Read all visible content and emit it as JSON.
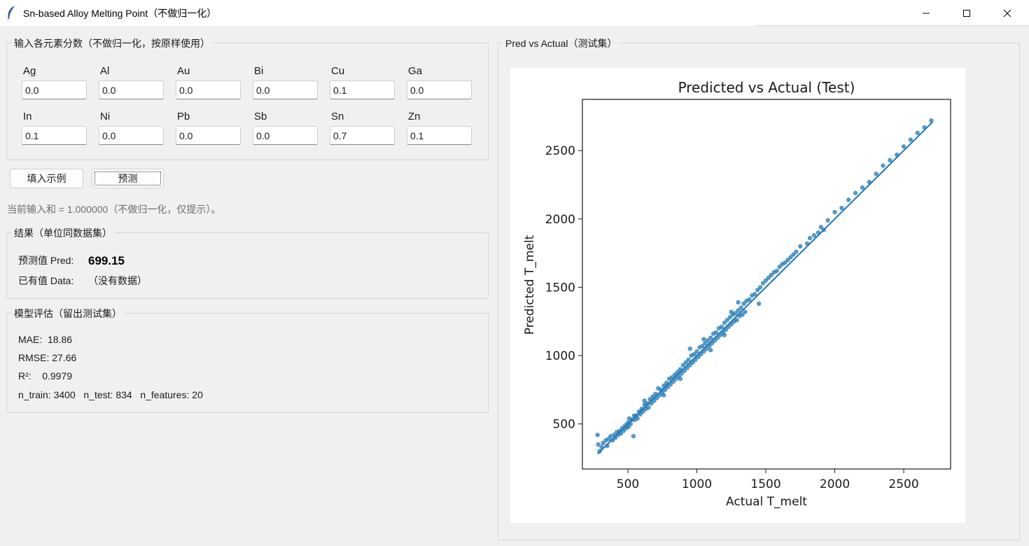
{
  "window": {
    "title": "Sn-based Alloy Melting Point（不做归一化）"
  },
  "inputs": {
    "group_title": "输入各元素分数（不做归一化，按原样使用）",
    "fields": [
      {
        "label": "Ag",
        "value": "0.0"
      },
      {
        "label": "Al",
        "value": "0.0"
      },
      {
        "label": "Au",
        "value": "0.0"
      },
      {
        "label": "Bi",
        "value": "0.0"
      },
      {
        "label": "Cu",
        "value": "0.1"
      },
      {
        "label": "Ga",
        "value": "0.0"
      },
      {
        "label": "In",
        "value": "0.1"
      },
      {
        "label": "Ni",
        "value": "0.0"
      },
      {
        "label": "Pb",
        "value": "0.0"
      },
      {
        "label": "Sb",
        "value": "0.0"
      },
      {
        "label": "Sn",
        "value": "0.7"
      },
      {
        "label": "Zn",
        "value": "0.1"
      }
    ]
  },
  "buttons": {
    "fill_example": "填入示例",
    "predict": "预测"
  },
  "hint": "当前输入和 = 1.000000（不做归一化，仅提示）。",
  "result": {
    "group_title": "结果（单位同数据集）",
    "pred_label": "预测值 Pred:",
    "pred_value": "699.15",
    "data_label": "已有值 Data:",
    "data_value": "（没有数据）"
  },
  "evaluation": {
    "group_title": "模型评估（留出测试集）",
    "mae": "MAE:  18.86",
    "rmse": "RMSE: 27.66",
    "r2": "R²:    0.9979",
    "counts": "n_train: 3400   n_test: 834   n_features: 20"
  },
  "plot_panel": {
    "group_title": "Pred vs Actual（测试集）"
  },
  "chart_data": {
    "type": "scatter",
    "title": "Predicted vs Actual (Test)",
    "xlabel": "Actual T_melt",
    "ylabel": "Predicted T_melt",
    "xlim": [
      170,
      2840
    ],
    "ylim": [
      170,
      2875
    ],
    "xticks": [
      500,
      1000,
      1500,
      2000,
      2500
    ],
    "yticks": [
      500,
      1000,
      1500,
      2000,
      2500
    ],
    "grid": false,
    "point_color": "#1f77b4",
    "line_color": "#1f77b4",
    "diagonal": [
      [
        280,
        2710
      ],
      [
        280,
        2710
      ]
    ],
    "points": [
      [
        280,
        420
      ],
      [
        285,
        350
      ],
      [
        295,
        300
      ],
      [
        310,
        330
      ],
      [
        320,
        360
      ],
      [
        340,
        380
      ],
      [
        350,
        340
      ],
      [
        360,
        390
      ],
      [
        375,
        410
      ],
      [
        390,
        380
      ],
      [
        400,
        420
      ],
      [
        410,
        400
      ],
      [
        420,
        440
      ],
      [
        430,
        420
      ],
      [
        440,
        450
      ],
      [
        450,
        430
      ],
      [
        460,
        470
      ],
      [
        470,
        450
      ],
      [
        480,
        490
      ],
      [
        490,
        470
      ],
      [
        500,
        510
      ],
      [
        505,
        480
      ],
      [
        510,
        540
      ],
      [
        520,
        500
      ],
      [
        530,
        530
      ],
      [
        540,
        410
      ],
      [
        545,
        560
      ],
      [
        550,
        530
      ],
      [
        560,
        560
      ],
      [
        570,
        540
      ],
      [
        580,
        590
      ],
      [
        590,
        570
      ],
      [
        600,
        610
      ],
      [
        610,
        590
      ],
      [
        620,
        640
      ],
      [
        630,
        610
      ],
      [
        640,
        650
      ],
      [
        650,
        620
      ],
      [
        660,
        680
      ],
      [
        670,
        650
      ],
      [
        680,
        700
      ],
      [
        690,
        670
      ],
      [
        700,
        720
      ],
      [
        710,
        690
      ],
      [
        720,
        760
      ],
      [
        730,
        710
      ],
      [
        740,
        750
      ],
      [
        750,
        730
      ],
      [
        760,
        780
      ],
      [
        770,
        750
      ],
      [
        780,
        800
      ],
      [
        790,
        770
      ],
      [
        800,
        830
      ],
      [
        810,
        790
      ],
      [
        820,
        840
      ],
      [
        830,
        810
      ],
      [
        840,
        860
      ],
      [
        850,
        830
      ],
      [
        860,
        880
      ],
      [
        870,
        850
      ],
      [
        880,
        900
      ],
      [
        890,
        870
      ],
      [
        900,
        930
      ],
      [
        910,
        890
      ],
      [
        920,
        950
      ],
      [
        930,
        910
      ],
      [
        940,
        970
      ],
      [
        950,
        930
      ],
      [
        960,
        1000
      ],
      [
        970,
        950
      ],
      [
        980,
        1010
      ],
      [
        990,
        970
      ],
      [
        1000,
        1030
      ],
      [
        1010,
        990
      ],
      [
        1020,
        1060
      ],
      [
        1030,
        1010
      ],
      [
        1040,
        1070
      ],
      [
        1050,
        1030
      ],
      [
        1060,
        1090
      ],
      [
        1070,
        1050
      ],
      [
        1080,
        1110
      ],
      [
        1090,
        1070
      ],
      [
        1100,
        1130
      ],
      [
        1110,
        1090
      ],
      [
        1120,
        1160
      ],
      [
        1130,
        1110
      ],
      [
        1140,
        1170
      ],
      [
        1150,
        1130
      ],
      [
        1160,
        1200
      ],
      [
        1170,
        1150
      ],
      [
        1180,
        1210
      ],
      [
        1190,
        1170
      ],
      [
        1200,
        1240
      ],
      [
        1210,
        1190
      ],
      [
        1220,
        1260
      ],
      [
        1230,
        1210
      ],
      [
        1240,
        1280
      ],
      [
        1250,
        1230
      ],
      [
        1260,
        1300
      ],
      [
        1270,
        1250
      ],
      [
        1280,
        1310
      ],
      [
        1290,
        1260
      ],
      [
        1300,
        1330
      ],
      [
        1310,
        1290
      ],
      [
        1320,
        1350
      ],
      [
        1330,
        1300
      ],
      [
        1340,
        1380
      ],
      [
        1350,
        1320
      ],
      [
        1360,
        1400
      ],
      [
        1380,
        1410
      ],
      [
        1400,
        1440
      ],
      [
        1420,
        1450
      ],
      [
        1440,
        1480
      ],
      [
        1460,
        1500
      ],
      [
        1480,
        1530
      ],
      [
        1500,
        1550
      ],
      [
        1520,
        1570
      ],
      [
        1540,
        1590
      ],
      [
        1560,
        1610
      ],
      [
        1580,
        1620
      ],
      [
        1600,
        1650
      ],
      [
        1620,
        1670
      ],
      [
        1640,
        1680
      ],
      [
        1660,
        1700
      ],
      [
        1680,
        1720
      ],
      [
        1700,
        1740
      ],
      [
        1720,
        1760
      ],
      [
        1750,
        1800
      ],
      [
        1800,
        1820
      ],
      [
        1820,
        1860
      ],
      [
        1850,
        1880
      ],
      [
        1880,
        1900
      ],
      [
        1900,
        1940
      ],
      [
        1920,
        1920
      ],
      [
        1950,
        1990
      ],
      [
        2000,
        2050
      ],
      [
        2050,
        2080
      ],
      [
        2100,
        2140
      ],
      [
        2150,
        2190
      ],
      [
        2200,
        2230
      ],
      [
        2250,
        2270
      ],
      [
        2300,
        2330
      ],
      [
        2350,
        2390
      ],
      [
        2400,
        2430
      ],
      [
        2450,
        2470
      ],
      [
        2500,
        2530
      ],
      [
        2550,
        2580
      ],
      [
        2600,
        2630
      ],
      [
        2650,
        2670
      ],
      [
        2700,
        2720
      ],
      [
        950,
        1050
      ],
      [
        1100,
        1040
      ],
      [
        1200,
        1150
      ],
      [
        1300,
        1390
      ],
      [
        1450,
        1380
      ],
      [
        1250,
        1320
      ],
      [
        1050,
        1120
      ],
      [
        880,
        830
      ],
      [
        760,
        710
      ],
      [
        620,
        670
      ]
    ]
  }
}
